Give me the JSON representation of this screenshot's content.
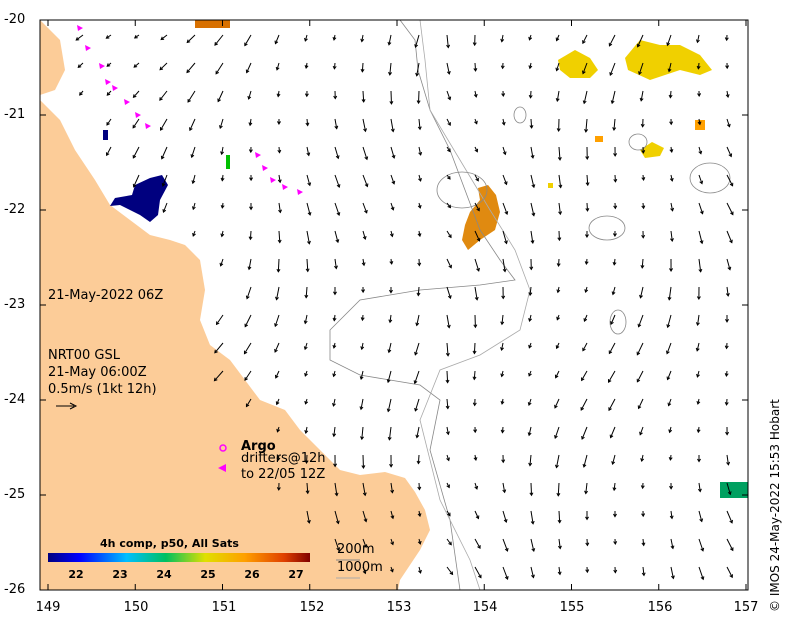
{
  "map": {
    "date_label": "21-May-2022 06Z",
    "product": "NRT00 GSL",
    "product_time": "21-May 06:00Z",
    "scale_text": "0.5m/s (1kt 12h)",
    "x_ticks": [
      "149",
      "150",
      "151",
      "152",
      "153",
      "154",
      "155",
      "156",
      "157"
    ],
    "y_ticks": [
      "-20",
      "-21",
      "-22",
      "-23",
      "-24",
      "-25",
      "-26"
    ],
    "argo": {
      "title": "Argo",
      "line1": "drifters@12h",
      "line2": "to 22/05 12Z"
    },
    "colorbar": {
      "title": "4h comp, p50, All Sats",
      "ticks": [
        "22",
        "23",
        "24",
        "25",
        "26",
        "27"
      ]
    },
    "isobaths": [
      "200m",
      "1000m"
    ],
    "credit": "© IMOS 24-May-2022 15:53 Hobart",
    "colors": {
      "land": "#fccc98",
      "cold": "#00007f",
      "warm": "#d87000",
      "argo": "#ff00ff"
    }
  }
}
